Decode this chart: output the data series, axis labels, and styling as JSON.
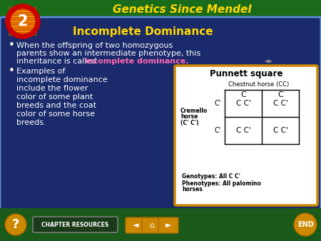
{
  "title": "Genetics Since Mendel",
  "title_color": "#FFD700",
  "title_bg_color": "#1a6b1a",
  "slide_bg_color": "#1a2a6b",
  "slide_border_color": "#5b8dd9",
  "section_number": "2",
  "section_circle_outer": "#cc0000",
  "section_circle_inner": "#ff8800",
  "section_stripe_color": "#cc4400",
  "heading": "Incomplete Dominance",
  "heading_color": "#FFD700",
  "bullet1_line1": "When the offspring of two homozygous",
  "bullet1_line2": "parents show an intermediate phenotype, this",
  "bullet1_line3_pre": "inheritance is called ",
  "bullet1_highlight": "incomplete dominance.",
  "bullet1_color": "#ffffff",
  "bullet1_highlight_color": "#ff69b4",
  "bullet2_lines": [
    "Examples of",
    "incomplete dominance",
    "include the flower",
    "color of some plant",
    "breeds and the coat",
    "color of some horse",
    "breeds."
  ],
  "bullet2_color": "#ffffff",
  "punnett_title": "Punnett square",
  "punnett_bg": "#ffffff",
  "punnett_border": "#cc8800",
  "punnett_col_header": "Chestnut horse (CC)",
  "punnett_col1": "C",
  "punnett_col2": "C",
  "punnett_row_label1": "Cremello",
  "punnett_row_label2": "horse",
  "punnett_row_label3": "(C' C')",
  "punnett_r1": "C'",
  "punnett_r2": "C'",
  "punnett_cell_tl": "C C'",
  "punnett_cell_tr": "C C'",
  "punnett_cell_bl": "C C'",
  "punnett_cell_br": "C C'",
  "punnett_genotypes": "Genotypes: All C C'",
  "punnett_phenotypes1": "Phenotypes: All palomino",
  "punnett_phenotypes2": "horses",
  "footer_bg": "#1a5a1a",
  "footer_text": "CHAPTER RESOURCES",
  "footer_text_color": "#ffffff",
  "end_btn_color": "#cc8800",
  "question_btn_color": "#cc8800",
  "nav_btn_color": "#cc8800",
  "end_text_color": "#ffffff"
}
